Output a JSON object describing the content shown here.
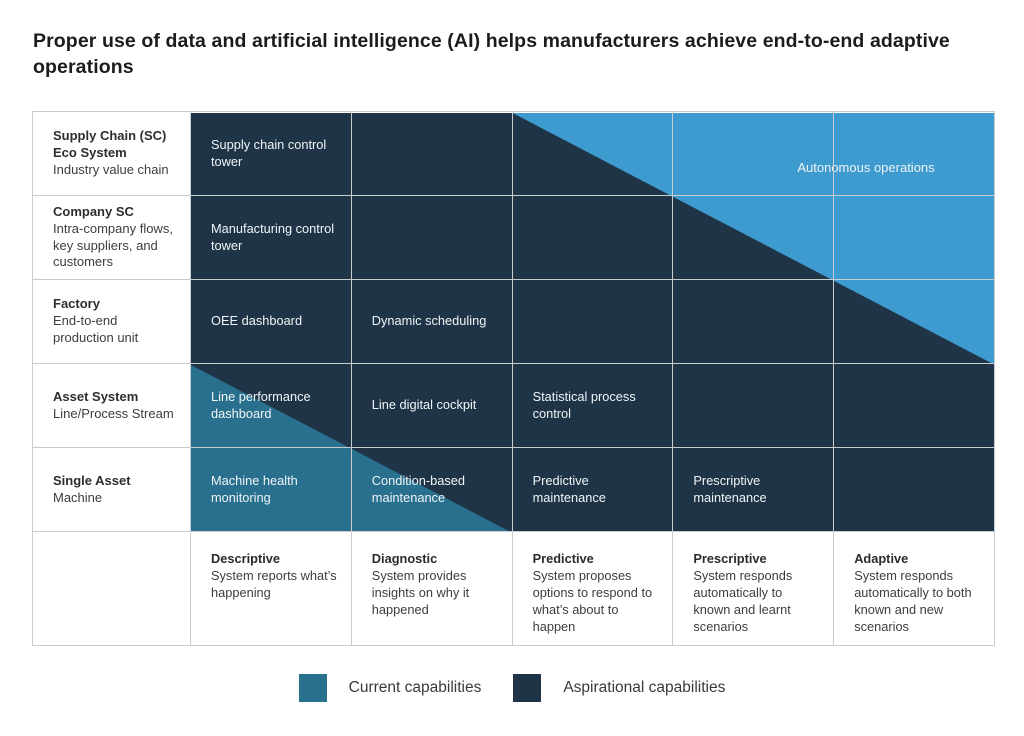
{
  "title": "Proper use of data and artificial intelligence (AI) helps manufacturers achieve end-to-end adaptive operations",
  "colors": {
    "current": "#29708F",
    "aspirational": "#1F3547",
    "autonomous": "#3E9BD0",
    "grid_line": "#c8ccce"
  },
  "matrix": {
    "overlay_label": "Autonomous operations",
    "rows": [
      {
        "label_bold": "Supply Chain (SC) Eco System",
        "label_sub": "Industry value chain",
        "cells": [
          "Supply chain control tower",
          "",
          "",
          "",
          ""
        ]
      },
      {
        "label_bold": "Company SC",
        "label_sub": "Intra-company flows, key suppliers, and customers",
        "cells": [
          "Manufacturing control tower",
          "",
          "",
          "",
          ""
        ]
      },
      {
        "label_bold": "Factory",
        "label_sub": "End-to-end production unit",
        "cells": [
          "OEE dashboard",
          "Dynamic scheduling",
          "",
          "",
          ""
        ]
      },
      {
        "label_bold": "Asset System",
        "label_sub": "Line/Process Stream",
        "cells": [
          "Line performance dashboard",
          "Line digital cockpit",
          "Statistical process control",
          "",
          ""
        ]
      },
      {
        "label_bold": "Single Asset",
        "label_sub": "Machine",
        "cells": [
          "Machine health monitoring",
          "Condition-based maintenance",
          "Predictive maintenance",
          "Prescriptive maintenance",
          ""
        ]
      }
    ],
    "footer": [
      {
        "term": "Descriptive",
        "desc": "System reports what’s happening"
      },
      {
        "term": "Diagnostic",
        "desc": "System provides insights on why it happened"
      },
      {
        "term": "Predictive",
        "desc": "System proposes options to respond to what’s about to happen"
      },
      {
        "term": "Prescriptive",
        "desc": "System responds automatically to known and learnt scenarios"
      },
      {
        "term": "Adaptive",
        "desc": "System responds automatically to both known and new scenarios"
      }
    ]
  },
  "legend": [
    {
      "label": "Current capabilities"
    },
    {
      "label": "Aspirational capabilities"
    }
  ]
}
